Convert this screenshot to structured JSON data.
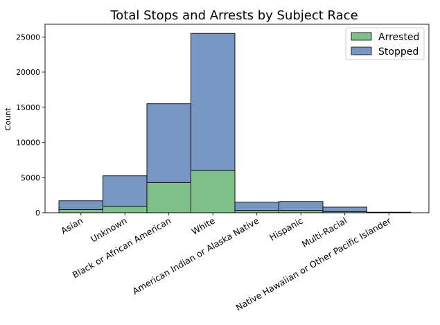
{
  "chart_data": {
    "type": "bar",
    "title": "Total Stops and Arrests by Subject Race",
    "xlabel": "",
    "ylabel": "Count",
    "categories": [
      "Asian",
      "Unknown",
      "Black or African American",
      "White",
      "American Indian or Alaska Native",
      "Hispanic",
      "Multi-Racial",
      "Native Hawaiian or Other Pacific Islander"
    ],
    "series": [
      {
        "name": "Stopped",
        "values": [
          1700,
          5250,
          15500,
          25500,
          1500,
          1600,
          800,
          80
        ],
        "color": "#7896c4"
      },
      {
        "name": "Arrested",
        "values": [
          450,
          900,
          4300,
          6000,
          350,
          350,
          150,
          20
        ],
        "color": "#7fbf8a"
      }
    ],
    "ylim": [
      0,
      26800
    ],
    "yticks": [
      0,
      5000,
      10000,
      15000,
      20000,
      25000
    ],
    "ytick_labels": [
      "0",
      "5000",
      "10000",
      "15000",
      "20000",
      "25000"
    ],
    "legend": {
      "placement": "top-right",
      "entries": [
        "Arrested",
        "Stopped"
      ]
    },
    "grid": false
  }
}
